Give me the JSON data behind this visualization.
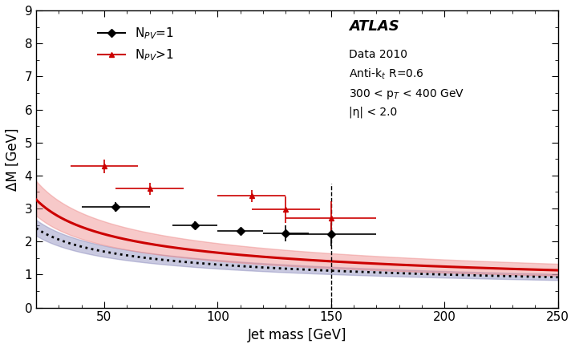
{
  "xlabel": "Jet mass [GeV]",
  "ylabel": "ΔM [GeV]",
  "xlim": [
    20,
    250
  ],
  "ylim": [
    0,
    9
  ],
  "yticks": [
    0,
    1,
    2,
    3,
    4,
    5,
    6,
    7,
    8,
    9
  ],
  "xticks": [
    50,
    100,
    150,
    200,
    250
  ],
  "npv1_data_x": [
    55,
    90,
    110,
    130,
    150
  ],
  "npv1_data_y": [
    3.05,
    2.5,
    2.32,
    2.25,
    2.22
  ],
  "npv1_data_xerr": [
    15,
    10,
    10,
    10,
    20
  ],
  "npv1_data_yerr": [
    0.15,
    0.12,
    0.1,
    0.25,
    0.35
  ],
  "npvgt1_data_x": [
    50,
    70,
    115,
    130,
    150
  ],
  "npvgt1_data_y": [
    4.28,
    3.6,
    3.38,
    2.97,
    2.72
  ],
  "npvgt1_data_xerr": [
    15,
    15,
    15,
    15,
    20
  ],
  "npvgt1_data_yerr": [
    0.2,
    0.18,
    0.18,
    0.4,
    0.5
  ],
  "curve_x_min": 20,
  "curve_x_max": 250,
  "npv1_A": 7.5,
  "npv1_B": 0.38,
  "npv1_upper_A": 8.3,
  "npv1_upper_B": 0.38,
  "npv1_lower_A": 6.8,
  "npv1_lower_B": 0.38,
  "npvgt1_A": 11.5,
  "npvgt1_B": 0.42,
  "npvgt1_upper_A": 13.5,
  "npvgt1_upper_B": 0.42,
  "npvgt1_lower_A": 9.8,
  "npvgt1_lower_B": 0.42,
  "npv1_color": "#000000",
  "npvgt1_color": "#cc0000",
  "npv1_band_color": "#8888bb",
  "npvgt1_band_color": "#ee8888",
  "vline_x": 150,
  "vline_ytop": 3.75,
  "legend_npv1_label": "N$_{PV}$=1",
  "legend_npvgt1_label": "N$_{PV}$>1"
}
